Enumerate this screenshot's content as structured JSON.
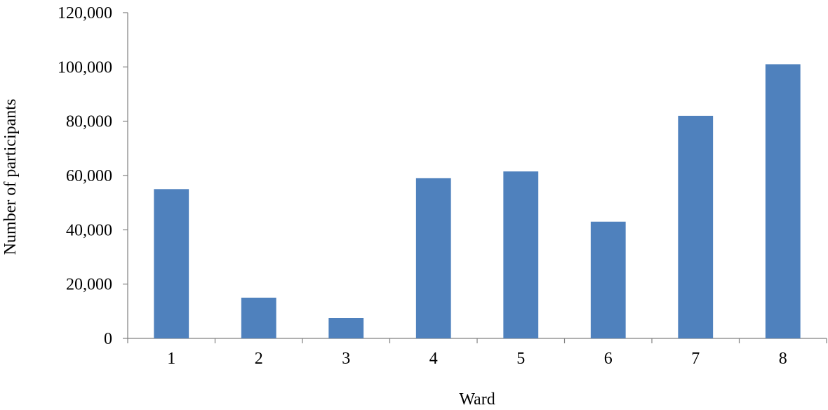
{
  "chart_data": {
    "type": "bar",
    "title": "",
    "xlabel": "Ward",
    "ylabel": "Number of participants",
    "categories": [
      "1",
      "2",
      "3",
      "4",
      "5",
      "6",
      "7",
      "8"
    ],
    "values": [
      55000,
      15000,
      7500,
      59000,
      61500,
      43000,
      82000,
      101000
    ],
    "ylim": [
      0,
      120000
    ],
    "yticks": [
      0,
      20000,
      40000,
      60000,
      80000,
      100000,
      120000
    ],
    "ytick_labels": [
      "0",
      "20,000",
      "40,000",
      "60,000",
      "80,000",
      "100,000",
      "120,000"
    ],
    "grid": false,
    "legend": "none",
    "bar_color": "#4F81BD"
  }
}
